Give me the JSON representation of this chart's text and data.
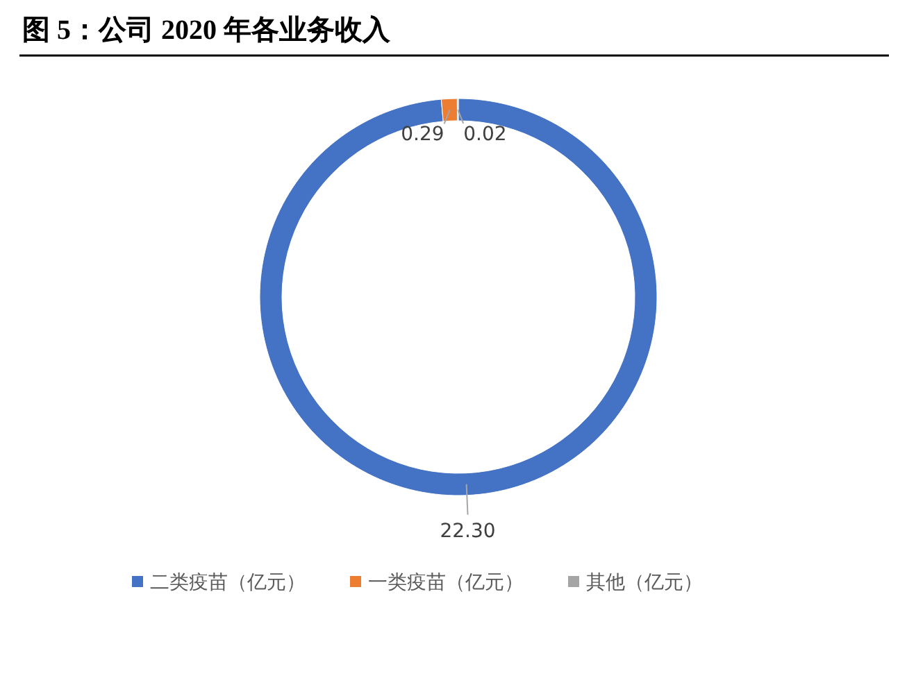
{
  "chart_data": {
    "type": "donut",
    "title": "图 5：公司 2020 年各业务收入",
    "categories": [
      "二类疫苗（亿元）",
      "一类疫苗（亿元）",
      "其他（亿元）"
    ],
    "values": [
      22.3,
      0.29,
      0.02
    ],
    "colors": [
      "#4472c4",
      "#ed7d31",
      "#a5a5a5"
    ],
    "value_labels": [
      "22.30",
      "0.29",
      "0.02"
    ],
    "legend": "bottom"
  }
}
